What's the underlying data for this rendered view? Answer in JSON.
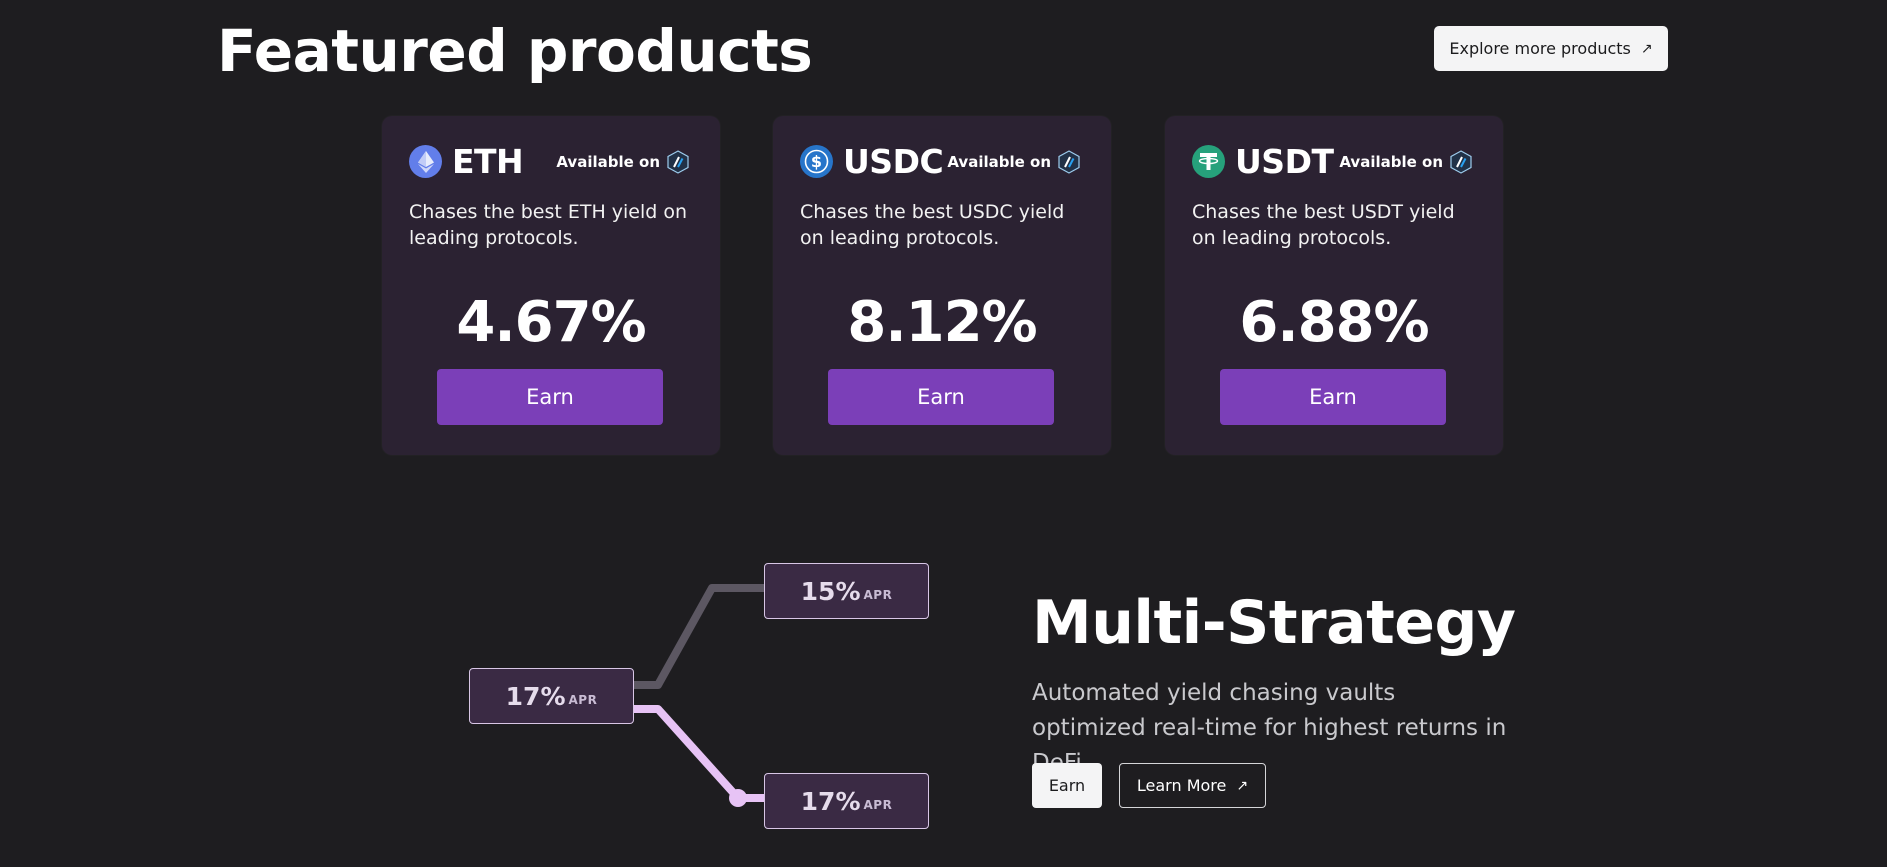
{
  "header": {
    "title": "Featured products",
    "explore_label": "Explore more products",
    "explore_icon": "arrow-up-right-icon"
  },
  "cards": [
    {
      "token": "ETH",
      "icon": "eth-icon",
      "available_label": "Available on",
      "network_icon": "arbitrum-icon",
      "description": "Chases the best ETH yield on leading protocols.",
      "apy": "4.67%",
      "button_label": "Earn"
    },
    {
      "token": "USDC",
      "icon": "usdc-icon",
      "available_label": "Available on",
      "network_icon": "arbitrum-icon",
      "description": "Chases the best USDC yield on leading protocols.",
      "apy": "8.12%",
      "button_label": "Earn"
    },
    {
      "token": "USDT",
      "icon": "usdt-icon",
      "available_label": "Available on",
      "network_icon": "arbitrum-icon",
      "description": "Chases the best USDT yield on leading protocols.",
      "apy": "6.88%",
      "button_label": "Earn"
    }
  ],
  "diagram": {
    "source": {
      "pct": "17%",
      "label": "APR"
    },
    "top": {
      "pct": "15%",
      "label": "APR"
    },
    "bottom": {
      "pct": "17%",
      "label": "APR"
    }
  },
  "multi_strategy": {
    "title": "Multi-Strategy",
    "description": "Automated yield chasing vaults optimized real-time for highest returns in DeFi.",
    "earn_label": "Earn",
    "learn_label": "Learn More",
    "learn_icon": "arrow-up-right-icon"
  },
  "colors": {
    "background": "#1e1d20",
    "card_bg": "#2b2232",
    "accent": "#7b3fb8",
    "eth": "#627eea",
    "usdc": "#2775ca",
    "usdt": "#26a17b"
  }
}
